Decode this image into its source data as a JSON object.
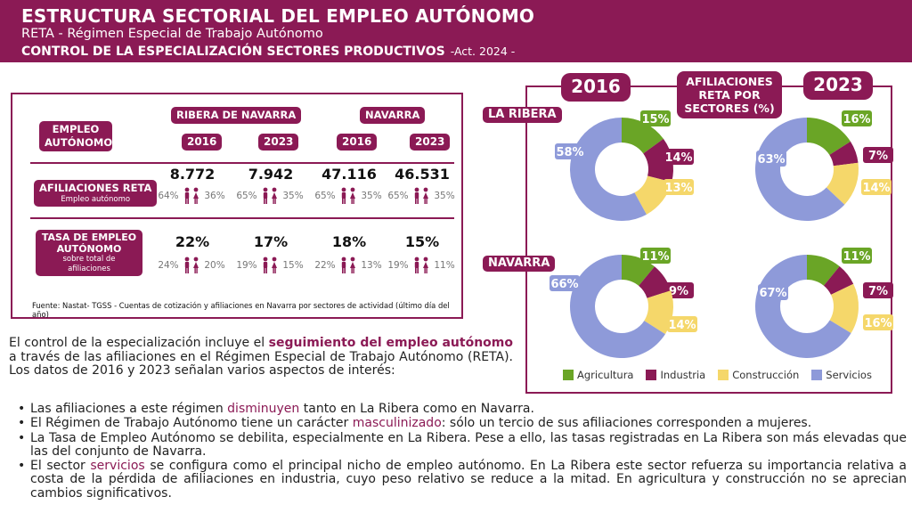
{
  "header": {
    "title": "ESTRUCTURA SECTORIAL DEL EMPLEO AUTÓNOMO",
    "subtitle": "RETA - Régimen Especial de Trabajo Autónomo",
    "control": "CONTROL DE LA ESPECIALIZACIÓN SECTORES PRODUCTIVOS",
    "act": "-Act. 2024 -"
  },
  "table": {
    "empleo_autonomo": "EMPLEO AUTÓNOMO",
    "region1": "RIBERA DE NAVARRA",
    "region2": "NAVARRA",
    "years": [
      "2016",
      "2023",
      "2016",
      "2023"
    ],
    "afiliaciones_label": "AFILIACIONES RETA",
    "afiliaciones_sub": "Empleo autónomo",
    "afiliaciones": [
      {
        "value": "8.772",
        "male": "64%",
        "female": "36%"
      },
      {
        "value": "7.942",
        "male": "65%",
        "female": "35%"
      },
      {
        "value": "47.116",
        "male": "65%",
        "female": "35%"
      },
      {
        "value": "46.531",
        "male": "65%",
        "female": "35%"
      }
    ],
    "tasa_label": "TASA DE EMPLEO AUTÓNOMO",
    "tasa_sub": "sobre total de afiliaciones",
    "tasa": [
      {
        "value": "22%",
        "male": "24%",
        "female": "20%"
      },
      {
        "value": "17%",
        "male": "19%",
        "female": "15%"
      },
      {
        "value": "18%",
        "male": "22%",
        "female": "13%"
      },
      {
        "value": "15%",
        "male": "19%",
        "female": "11%"
      }
    ],
    "source": "Fuente: Nastat- TGSS - Cuentas de cotización y afiliaciones en Navarra  por sectores de actividad (último día del año)"
  },
  "paragraph": {
    "p1": "El control de la especialización incluye el",
    "p1_hl": "seguimiento del empleo autónomo",
    "p1_end": "a través de las afiliaciones en el Régimen Especial de Trabajo Autónomo (RETA). Los datos de 2016 y 2023 señalan varios aspectos de interés:"
  },
  "bullets": {
    "b1_a": "Las afiliaciones a este régimen",
    "b1_hl": "disminuyen",
    "b1_b": "tanto en La Ribera como en Navarra.",
    "b2_a": "El Régimen de Trabajo Autónomo tiene un carácter",
    "b2_hl": "masculinizado",
    "b2_b": ": sólo un tercio de sus afiliaciones corresponden a mujeres.",
    "b3": "La Tasa de Empleo Autónomo se debilita, especialmente en La Ribera. Pese a ello, las tasas registradas en La Ribera son más elevadas que las del conjunto de Navarra.",
    "b4_a": "El sector",
    "b4_hl": "servicios",
    "b4_b": "se configura como el principal nicho de empleo autónomo. En La Ribera este sector refuerza su importancia relativa a costa de la pérdida de afiliaciones en industria, cuyo peso relativo se reduce a la mitad. En agricultura y construcción no se aprecian cambios significativos."
  },
  "chart_labels": {
    "year1": "2016",
    "year2": "2023",
    "center": "AFILIACIONES RETA POR SECTORES (%)",
    "row1": "LA RIBERA",
    "row2": "NAVARRA"
  },
  "chart_data": {
    "type": "donut",
    "title": "AFILIACIONES RETA POR SECTORES (%)",
    "categories": [
      "Agricultura",
      "Industria",
      "Construcción",
      "Servicios"
    ],
    "colors": [
      "#6aa526",
      "#8b1a55",
      "#f5d76a",
      "#8e9ad9"
    ],
    "charts": [
      {
        "region": "LA RIBERA",
        "year": "2016",
        "values": [
          15,
          14,
          13,
          58
        ]
      },
      {
        "region": "LA RIBERA",
        "year": "2023",
        "values": [
          16,
          7,
          14,
          63
        ]
      },
      {
        "region": "NAVARRA",
        "year": "2016",
        "values": [
          11,
          9,
          14,
          66
        ]
      },
      {
        "region": "NAVARRA",
        "year": "2023",
        "values": [
          11,
          7,
          16,
          67
        ]
      }
    ],
    "legend": "bottom"
  }
}
